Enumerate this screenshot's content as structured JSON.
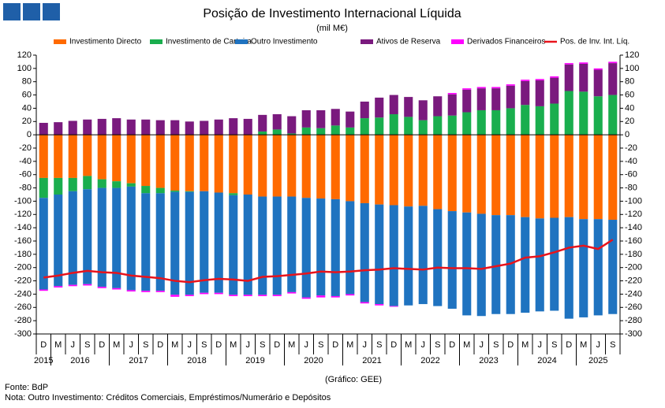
{
  "chart_data": {
    "type": "bar",
    "title": "Posição de Investimento Internacional Líquida",
    "subtitle": "(mil M€)",
    "source": "Fonte: BdP",
    "note": "Nota: Outro Investimento:  Créditos Comerciais, Empréstimos/Numerário  e Depósitos",
    "credit": "(Gráfico: GEE)",
    "categories": [
      "D",
      "M",
      "J",
      "S",
      "D",
      "M",
      "J",
      "S",
      "D",
      "M",
      "J",
      "S",
      "D",
      "M",
      "J",
      "S",
      "D",
      "M",
      "J",
      "S",
      "D",
      "M",
      "J",
      "S",
      "D",
      "M",
      "J",
      "S",
      "D",
      "M",
      "J",
      "S",
      "D",
      "M",
      "J",
      "S",
      "D",
      "M",
      "J",
      "S"
    ],
    "years": [
      "2015",
      "2016",
      "2017",
      "2018",
      "2019",
      "2020",
      "2021",
      "2022",
      "2023",
      "2024",
      "2025"
    ],
    "series": [
      {
        "name": "Investimento Directo",
        "color": "#ff6a00",
        "values": [
          -65,
          -65,
          -65,
          -62,
          -67,
          -70,
          -73,
          -77,
          -80,
          -84,
          -85,
          -85,
          -87,
          -88,
          -90,
          -93,
          -93,
          -93,
          -95,
          -96,
          -97,
          -100,
          -103,
          -105,
          -106,
          -108,
          -107,
          -112,
          -115,
          -117,
          -119,
          -121,
          -121,
          -124,
          -126,
          -125,
          -124,
          -127,
          -127,
          -128
        ]
      },
      {
        "name": "Investimento de Carteira",
        "color": "#1aae4e",
        "values": [
          -30,
          -25,
          -20,
          -20,
          -13,
          -10,
          -5,
          -11,
          -8,
          -2,
          -1,
          0,
          0,
          -3,
          0,
          5,
          8,
          2,
          11,
          10,
          14,
          11,
          25,
          26,
          31,
          27,
          22,
          28,
          29,
          34,
          37,
          37,
          40,
          45,
          43,
          47,
          66,
          65,
          58,
          60
        ]
      },
      {
        "name": "Outro Investimento",
        "color": "#1f73c0",
        "values": [
          -138,
          -138,
          -141,
          -143,
          -149,
          -151,
          -156,
          -147,
          -147,
          -155,
          -155,
          -153,
          -151,
          -150,
          -151,
          -148,
          -148,
          -144,
          -150,
          -146,
          -146,
          -140,
          -149,
          -150,
          -152,
          -149,
          -148,
          -146,
          -147,
          -155,
          -154,
          -149,
          -149,
          -144,
          -140,
          -140,
          -153,
          -148,
          -145,
          -142
        ]
      },
      {
        "name": "Ativos de Reserva",
        "color": "#7a1a7e",
        "values": [
          18,
          19,
          21,
          23,
          24,
          25,
          23,
          23,
          22,
          22,
          20,
          21,
          23,
          25,
          24,
          25,
          23,
          26,
          26,
          27,
          25,
          24,
          25,
          30,
          29,
          30,
          30,
          30,
          32,
          34,
          33,
          33,
          34,
          36,
          39,
          39,
          40,
          42,
          40,
          48
        ]
      },
      {
        "name": "Derivados Financeiros",
        "color": "#ff00ff",
        "values": [
          -2,
          -2,
          -2,
          -2,
          -2,
          -2,
          -2,
          -2,
          -2,
          -3,
          -2,
          -2,
          -2,
          -2,
          -2,
          -2,
          -2,
          -2,
          -2,
          -3,
          -2,
          -2,
          -2,
          -2,
          -1,
          0,
          0,
          0,
          2,
          2,
          2,
          2,
          2,
          2,
          2,
          2,
          2,
          2,
          2,
          2
        ]
      },
      {
        "name": "Pos. de Inv. Int. Líq.",
        "color": "#e8131b",
        "type": "line",
        "values": [
          -215,
          -212,
          -208,
          -205,
          -207,
          -208,
          -212,
          -214,
          -216,
          -220,
          -222,
          -219,
          -217,
          -218,
          -220,
          -214,
          -213,
          -211,
          -209,
          -206,
          -207,
          -206,
          -204,
          -203,
          -201,
          -202,
          -203,
          -200,
          -201,
          -201,
          -202,
          -198,
          -194,
          -185,
          -183,
          -177,
          -170,
          -167,
          -172,
          -158
        ]
      }
    ],
    "ylim": [
      -300,
      120
    ],
    "yticks": [
      -300,
      -280,
      -260,
      -240,
      -220,
      -200,
      -180,
      -160,
      -140,
      -120,
      -100,
      -80,
      -60,
      -40,
      -20,
      0,
      20,
      40,
      60,
      80,
      100,
      120
    ],
    "y2lim": [
      -300,
      120
    ],
    "y2ticks": [
      -300,
      -280,
      -260,
      -240,
      -220,
      -200,
      -180,
      -160,
      -140,
      -120,
      -100,
      -80,
      -60,
      -40,
      -20,
      0,
      20,
      40,
      60,
      80,
      100,
      120
    ],
    "grid": false,
    "legend": "top"
  }
}
